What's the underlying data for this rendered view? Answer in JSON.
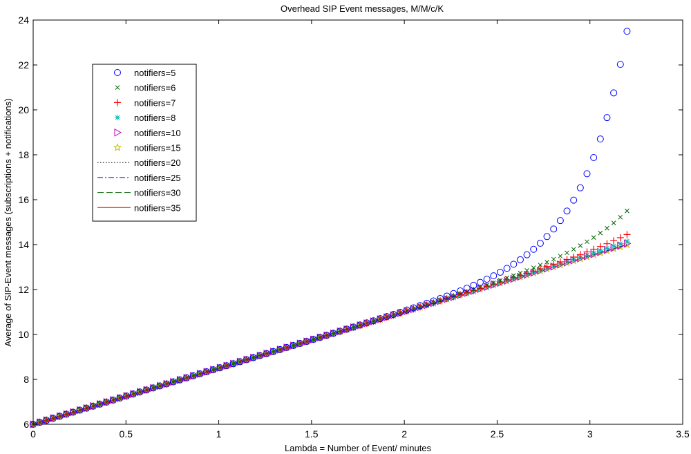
{
  "chart_data": {
    "type": "scatter",
    "title": "Overhead SIP Event messages, M/M/c/K",
    "xlabel": "Lambda = Number of Event/ minutes",
    "ylabel": "Average of SIP-Event messages (subscriptions + notifications)",
    "xlim": [
      0,
      3.5
    ],
    "ylim": [
      6,
      24
    ],
    "xticks": [
      "0",
      "0.5",
      "1",
      "1.5",
      "2",
      "2.5",
      "3",
      "3.5"
    ],
    "yticks": [
      "6",
      "8",
      "10",
      "12",
      "14",
      "16",
      "18",
      "20",
      "22",
      "24"
    ],
    "grid": false,
    "legend_placement": "top-left",
    "x_range": [
      0,
      3.2
    ],
    "points_per_series": 90,
    "series": [
      {
        "name": "notifiers=5",
        "marker": "circle",
        "color": "#0000ff",
        "end_value": 23.5
      },
      {
        "name": "notifiers=6",
        "marker": "x",
        "color": "#006400",
        "end_value": 15.5
      },
      {
        "name": "notifiers=7",
        "marker": "plus",
        "color": "#ff0000",
        "end_value": 14.45
      },
      {
        "name": "notifiers=8",
        "marker": "star",
        "color": "#00bfbf",
        "end_value": 14.15
      },
      {
        "name": "notifiers=10",
        "marker": "triangle-right",
        "color": "#bf00bf",
        "end_value": 14.05
      },
      {
        "name": "notifiers=15",
        "marker": "pentagram",
        "color": "#bfbf00",
        "end_value": 14.0
      },
      {
        "name": "notifiers=20",
        "marker": "dotted",
        "color": "#000000",
        "end_value": 14.0
      },
      {
        "name": "notifiers=25",
        "marker": "dashdot",
        "color": "#0000ff",
        "end_value": 14.0
      },
      {
        "name": "notifiers=30",
        "marker": "dashed",
        "color": "#006400",
        "end_value": 14.0
      },
      {
        "name": "notifiers=35",
        "marker": "solid",
        "color": "#ff0000",
        "end_value": 14.0
      }
    ],
    "baseline": {
      "start": 6.0,
      "slope": 2.5
    }
  }
}
